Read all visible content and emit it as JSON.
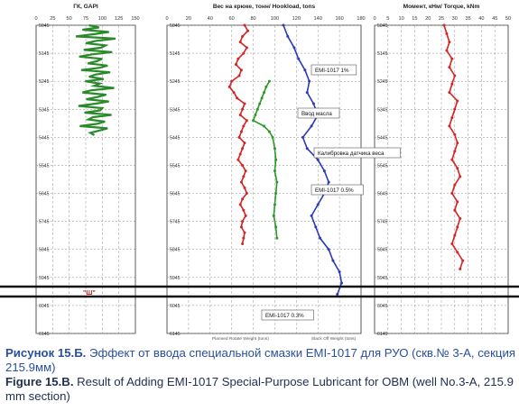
{
  "chart_data": [
    {
      "type": "line",
      "title": "ГК, GAPI",
      "xlim": [
        0,
        150
      ],
      "xticks": [
        "0",
        "25",
        "50",
        "75",
        "100",
        "125",
        "150"
      ],
      "series": [
        {
          "name": "",
          "color": "#2a8a2a",
          "x": [
            80,
            95,
            70,
            110,
            88,
            60,
            120,
            90,
            75,
            105,
            98,
            72,
            115,
            85,
            65,
            100,
            92,
            78,
            108,
            95,
            68,
            112,
            90,
            80,
            102,
            74,
            96,
            88,
            118,
            84,
            70,
            106,
            93,
            76,
            110,
            89,
            64,
            100,
            97,
            73,
            114,
            86,
            79,
            104,
            92,
            66,
            108,
            95,
            82,
            88
          ],
          "y": [
            5045,
            5053,
            5061,
            5069,
            5077,
            5085,
            5093,
            5101,
            5109,
            5117,
            5125,
            5133,
            5141,
            5149,
            5157,
            5165,
            5173,
            5181,
            5189,
            5197,
            5205,
            5213,
            5221,
            5229,
            5237,
            5245,
            5253,
            5261,
            5269,
            5277,
            5285,
            5293,
            5301,
            5309,
            5317,
            5325,
            5333,
            5341,
            5349,
            5357,
            5365,
            5373,
            5381,
            5389,
            5397,
            5405,
            5413,
            5421,
            5429,
            5437
          ]
        }
      ]
    },
    {
      "type": "scatter",
      "title": "Вес на крюке, тонн/ Hookload, tons",
      "xlim": [
        0,
        180
      ],
      "xticks": [
        "0",
        "20",
        "40",
        "60",
        "80",
        "100",
        "120",
        "140",
        "160",
        "180"
      ],
      "series": [
        {
          "name": "",
          "color": "#d42424",
          "x": [
            72,
            75,
            70,
            68,
            74,
            71,
            66,
            64,
            69,
            67,
            60,
            58,
            62,
            65,
            72,
            70,
            68,
            74,
            71,
            69,
            67,
            72,
            70,
            68,
            66,
            70,
            73,
            71,
            69,
            72,
            74,
            70,
            68,
            71,
            73,
            70,
            69,
            72,
            71,
            70
          ],
          "y": [
            5045,
            5065,
            5085,
            5105,
            5125,
            5145,
            5165,
            5185,
            5205,
            5225,
            5245,
            5265,
            5285,
            5305,
            5325,
            5345,
            5365,
            5385,
            5405,
            5425,
            5445,
            5465,
            5485,
            5505,
            5525,
            5545,
            5565,
            5585,
            5605,
            5625,
            5645,
            5665,
            5685,
            5705,
            5725,
            5745,
            5765,
            5785,
            5805,
            5825
          ]
        },
        {
          "name": "",
          "color": "#2a9a2a",
          "x": [
            95,
            92,
            90,
            88,
            86,
            84,
            82,
            80,
            90,
            95,
            98,
            100,
            101,
            100,
            102,
            101,
            100,
            99,
            101,
            102
          ],
          "y": [
            5245,
            5265,
            5285,
            5305,
            5325,
            5345,
            5365,
            5385,
            5405,
            5425,
            5445,
            5485,
            5525,
            5565,
            5605,
            5645,
            5685,
            5725,
            5765,
            5805
          ]
        },
        {
          "name": "",
          "color": "#2a3ab8",
          "x": [
            108,
            112,
            118,
            122,
            128,
            132,
            130,
            136,
            140,
            134,
            126,
            130,
            140,
            146,
            150,
            146,
            140,
            134,
            138,
            142,
            150,
            154,
            160,
            162,
            158
          ],
          "y": [
            5045,
            5085,
            5125,
            5165,
            5205,
            5245,
            5285,
            5325,
            5365,
            5405,
            5445,
            5485,
            5525,
            5565,
            5605,
            5645,
            5685,
            5725,
            5765,
            5805,
            5845,
            5885,
            5925,
            5965,
            6005
          ]
        }
      ],
      "annotations": [
        "EMI-1017 1%",
        "Ввод масла",
        "Калибровка датчика веса",
        "EMI-1017 0.5%",
        "EMI-1017 0.3%"
      ],
      "legend": [
        "Planned Rotate Weight (tons)",
        "Slack Off Weight (tons)"
      ]
    },
    {
      "type": "scatter",
      "title": "Момент, кНм/ Torque, kNm",
      "xlim": [
        0,
        50
      ],
      "xticks": [
        "0",
        "5",
        "10",
        "15",
        "20",
        "25",
        "30",
        "35",
        "40",
        "45",
        "50"
      ],
      "series": [
        {
          "name": "",
          "color": "#d42424",
          "x": [
            26,
            27,
            28,
            27,
            29,
            28,
            30,
            29,
            28,
            31,
            30,
            29,
            28,
            30,
            31,
            30,
            29,
            31,
            32,
            30,
            29,
            31,
            30,
            32,
            31,
            30,
            29,
            31,
            33,
            32
          ],
          "y": [
            5045,
            5075,
            5105,
            5135,
            5165,
            5195,
            5225,
            5255,
            5285,
            5315,
            5345,
            5375,
            5405,
            5435,
            5465,
            5495,
            5525,
            5555,
            5585,
            5615,
            5645,
            5675,
            5705,
            5735,
            5765,
            5795,
            5825,
            5855,
            5885,
            5915
          ]
        }
      ]
    }
  ],
  "depth_labels": [
    "5045",
    "5145",
    "5245",
    "5345",
    "5445",
    "5545",
    "5645",
    "5745",
    "5845",
    "5945",
    "6045",
    "6145"
  ],
  "marker_label": "\"Ш\"",
  "caption": {
    "ru_bold": "Рисунок 15.Б.",
    "ru_text": " Эффект от ввода специальной смазки EMI-1017 для РУО (скв.№ 3-А, секция 215.9мм)",
    "en_bold": "Figure 15.B.",
    "en_text": " Result of Adding EMI-1017 Special-Purpose Lubricant for OBM (well No.3-A, 215.9 mm section)"
  }
}
